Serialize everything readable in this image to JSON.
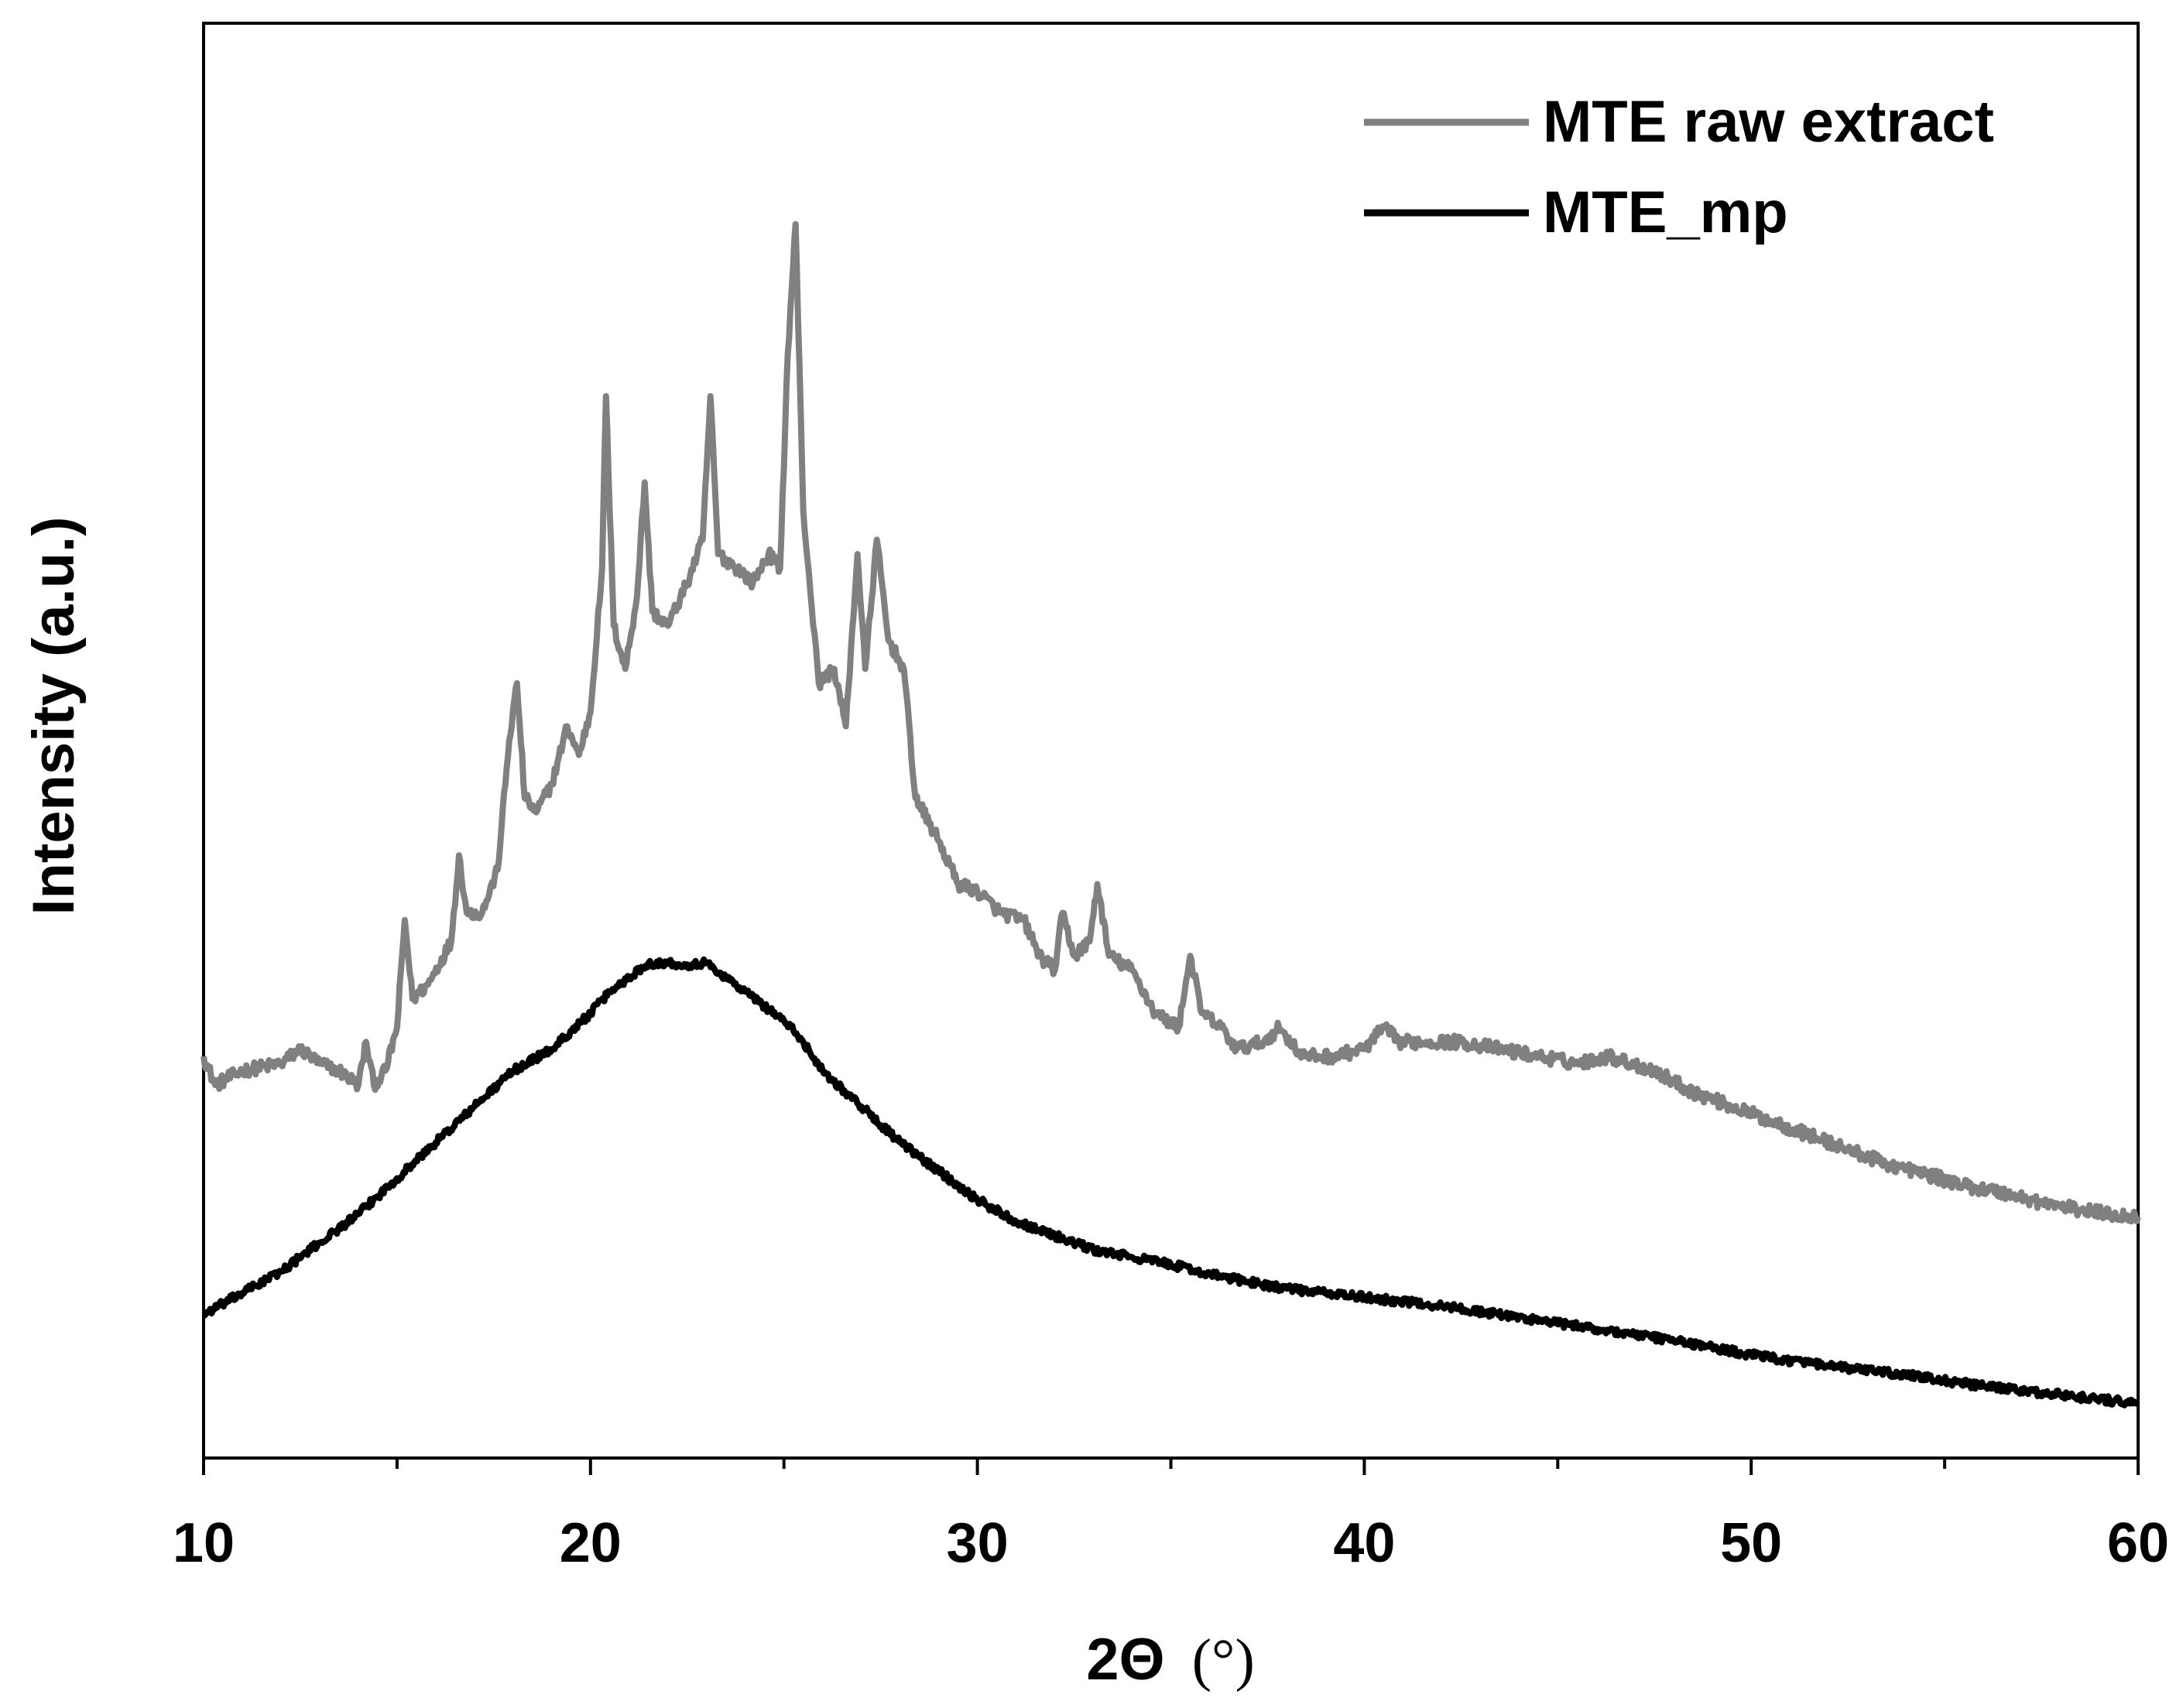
{
  "chart_data": {
    "type": "line",
    "title": "",
    "xlabel": "2Θ (°)",
    "xlabel_main": "2Θ",
    "xlabel_unit": "(°)",
    "ylabel": "Intensity (a.u.)",
    "xlim": [
      10,
      60
    ],
    "ylim": [
      0,
      100
    ],
    "x_ticks": [
      10,
      20,
      30,
      40,
      50,
      60
    ],
    "x_tick_labels": [
      "10",
      "20",
      "30",
      "40",
      "50",
      "60"
    ],
    "y_ticks_shown": false,
    "legend_position": "top-right",
    "series": [
      {
        "name": "MTE raw extract",
        "color": "#808080",
        "points": [
          [
            10.0,
            28
          ],
          [
            10.3,
            26
          ],
          [
            11,
            27
          ],
          [
            12,
            27.5
          ],
          [
            12.5,
            28.5
          ],
          [
            13,
            27.5
          ],
          [
            13.5,
            27
          ],
          [
            14,
            26
          ],
          [
            14.2,
            29
          ],
          [
            14.4,
            26
          ],
          [
            14.7,
            27
          ],
          [
            15,
            30
          ],
          [
            15.2,
            37.5
          ],
          [
            15.4,
            32
          ],
          [
            15.8,
            33
          ],
          [
            16.4,
            36
          ],
          [
            16.6,
            42
          ],
          [
            16.8,
            38
          ],
          [
            17.2,
            38
          ],
          [
            17.6,
            41
          ],
          [
            17.9,
            50
          ],
          [
            18.1,
            54
          ],
          [
            18.3,
            46
          ],
          [
            18.6,
            45
          ],
          [
            19.0,
            47
          ],
          [
            19.4,
            51
          ],
          [
            19.7,
            49
          ],
          [
            20.0,
            52
          ],
          [
            20.3,
            62
          ],
          [
            20.4,
            74
          ],
          [
            20.6,
            58
          ],
          [
            20.9,
            55
          ],
          [
            21.2,
            60
          ],
          [
            21.4,
            68
          ],
          [
            21.6,
            59
          ],
          [
            22.0,
            58
          ],
          [
            22.5,
            61
          ],
          [
            22.9,
            64
          ],
          [
            23.1,
            74
          ],
          [
            23.3,
            63
          ],
          [
            23.8,
            62
          ],
          [
            24.2,
            61
          ],
          [
            24.6,
            63
          ],
          [
            24.9,
            62
          ],
          [
            25.1,
            77
          ],
          [
            25.3,
            86
          ],
          [
            25.5,
            66
          ],
          [
            25.9,
            54
          ],
          [
            26.3,
            55
          ],
          [
            26.6,
            51
          ],
          [
            26.9,
            63
          ],
          [
            27.1,
            55
          ],
          [
            27.4,
            64
          ],
          [
            27.7,
            57
          ],
          [
            28.1,
            55
          ],
          [
            28.4,
            46
          ],
          [
            29,
            43
          ],
          [
            29.5,
            40
          ],
          [
            30,
            39.5
          ],
          [
            30.6,
            38
          ],
          [
            31.2,
            37.5
          ],
          [
            31.6,
            35
          ],
          [
            32.0,
            34
          ],
          [
            32.2,
            38
          ],
          [
            32.5,
            35
          ],
          [
            32.9,
            36
          ],
          [
            33.1,
            40
          ],
          [
            33.4,
            35
          ],
          [
            34,
            34
          ],
          [
            34.6,
            31
          ],
          [
            35.2,
            30
          ],
          [
            35.5,
            35
          ],
          [
            35.8,
            31
          ],
          [
            36.3,
            30
          ],
          [
            36.7,
            28.5
          ],
          [
            37.4,
            29
          ],
          [
            37.8,
            30
          ],
          [
            38.4,
            28
          ],
          [
            39.2,
            28
          ],
          [
            40,
            28.5
          ],
          [
            40.5,
            30
          ],
          [
            40.9,
            29
          ],
          [
            41.6,
            29
          ],
          [
            42.5,
            29
          ],
          [
            43.5,
            28.5
          ],
          [
            44.5,
            28
          ],
          [
            45.5,
            27.5
          ],
          [
            46.3,
            28
          ],
          [
            47.5,
            27
          ],
          [
            48.5,
            25.5
          ],
          [
            49.5,
            24.5
          ],
          [
            50.5,
            23.5
          ],
          [
            51.5,
            22.5
          ],
          [
            52.5,
            21.5
          ],
          [
            53.5,
            20.5
          ],
          [
            54.5,
            19.8
          ],
          [
            55.5,
            19
          ],
          [
            56.5,
            18.5
          ],
          [
            57.5,
            17.8
          ],
          [
            58.5,
            17.3
          ],
          [
            59.3,
            17
          ],
          [
            60,
            16.8
          ]
        ]
      },
      {
        "name": "MTE_mp",
        "color": "#000000",
        "points": [
          [
            10.0,
            10
          ],
          [
            11,
            11.5
          ],
          [
            12,
            13
          ],
          [
            13,
            15
          ],
          [
            14,
            17
          ],
          [
            15,
            19.5
          ],
          [
            16,
            22
          ],
          [
            17,
            24.5
          ],
          [
            18,
            27
          ],
          [
            19,
            28.5
          ],
          [
            20,
            31
          ],
          [
            20.5,
            32.5
          ],
          [
            21,
            33.5
          ],
          [
            21.5,
            34.5
          ],
          [
            22,
            34.5
          ],
          [
            22.5,
            34.4
          ],
          [
            23,
            34.5
          ],
          [
            23.5,
            33.5
          ],
          [
            24,
            32.5
          ],
          [
            24.5,
            31.5
          ],
          [
            25,
            30.5
          ],
          [
            25.5,
            29
          ],
          [
            26,
            27
          ],
          [
            27,
            24.5
          ],
          [
            28,
            22
          ],
          [
            29,
            20
          ],
          [
            30,
            18
          ],
          [
            31,
            16.5
          ],
          [
            32,
            15.5
          ],
          [
            33,
            14.5
          ],
          [
            34,
            14
          ],
          [
            35,
            13.5
          ],
          [
            36,
            12.8
          ],
          [
            38,
            11.8
          ],
          [
            40,
            11.2
          ],
          [
            42,
            10.6
          ],
          [
            44,
            9.8
          ],
          [
            46,
            9.0
          ],
          [
            48,
            8.2
          ],
          [
            50,
            7.2
          ],
          [
            52,
            6.4
          ],
          [
            54,
            5.8
          ],
          [
            56,
            5.0
          ],
          [
            58,
            4.4
          ],
          [
            60,
            3.8
          ]
        ]
      }
    ]
  }
}
